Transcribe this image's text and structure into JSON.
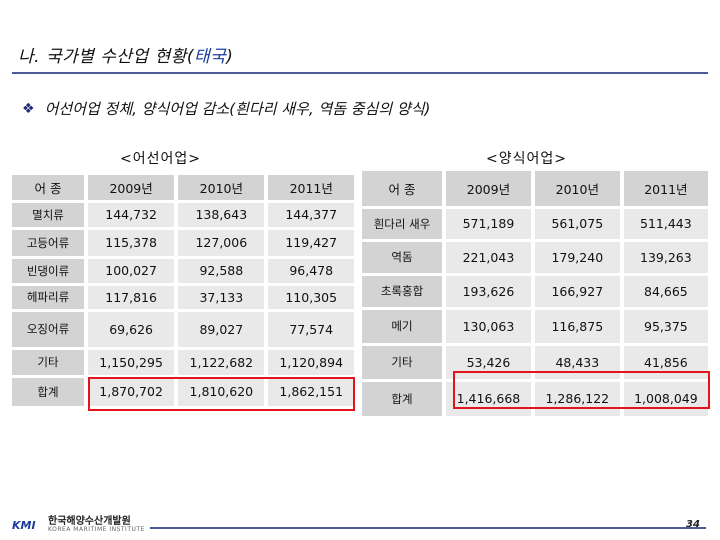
{
  "title": {
    "prefix": "나. 국가별 수산업 현황(",
    "highlight": "태국",
    "suffix": ")"
  },
  "bullet": {
    "icon": "diamond-bullet-icon",
    "text": "어선어업 정체, 양식어업 감소(흰다리 새우, 역돔 중심의 양식)"
  },
  "left_table": {
    "caption": "<어선어업>",
    "header": [
      "어 종",
      "2009년",
      "2010년",
      "2011년"
    ],
    "rows": [
      [
        "멸치류",
        "144,732",
        "138,643",
        "144,377"
      ],
      [
        "고등어류",
        "115,378",
        "127,006",
        "119,427"
      ],
      [
        "빈댕이류",
        "100,027",
        "92,588",
        "96,478"
      ],
      [
        "헤파리류",
        "117,816",
        "37,133",
        "110,305"
      ],
      [
        "오징어류",
        "69,626",
        "89,027",
        "77,574"
      ],
      [
        "기타",
        "1,150,295",
        "1,122,682",
        "1,120,894"
      ],
      [
        "합계",
        "1,870,702",
        "1,810,620",
        "1,862,151"
      ]
    ]
  },
  "right_table": {
    "caption": "<양식어업>",
    "header": [
      "어 종",
      "2009년",
      "2010년",
      "2011년"
    ],
    "rows": [
      [
        "흰다리 새우",
        "571,189",
        "561,075",
        "511,443"
      ],
      [
        "역돔",
        "221,043",
        "179,240",
        "139,263"
      ],
      [
        "초록홍합",
        "193,626",
        "166,927",
        "84,665"
      ],
      [
        "메기",
        "130,063",
        "116,875",
        "95,375"
      ],
      [
        "기타",
        "53,426",
        "48,433",
        "41,856"
      ],
      [
        "합계",
        "1,416,668",
        "1,286,122",
        "1,008,049"
      ]
    ]
  },
  "footer": {
    "logo_mark": "KMI",
    "logo_korean": "한국해양수산개발원",
    "logo_english": "KOREA MARITIME INSTITUTE",
    "page_number": "34"
  },
  "colors": {
    "highlight_title": "#1a3c9c",
    "highlight_box": "#e3141c",
    "header_fill": "#d3d3d3",
    "cell_fill": "#e9e9e9",
    "rule": "#4d5a9c"
  }
}
